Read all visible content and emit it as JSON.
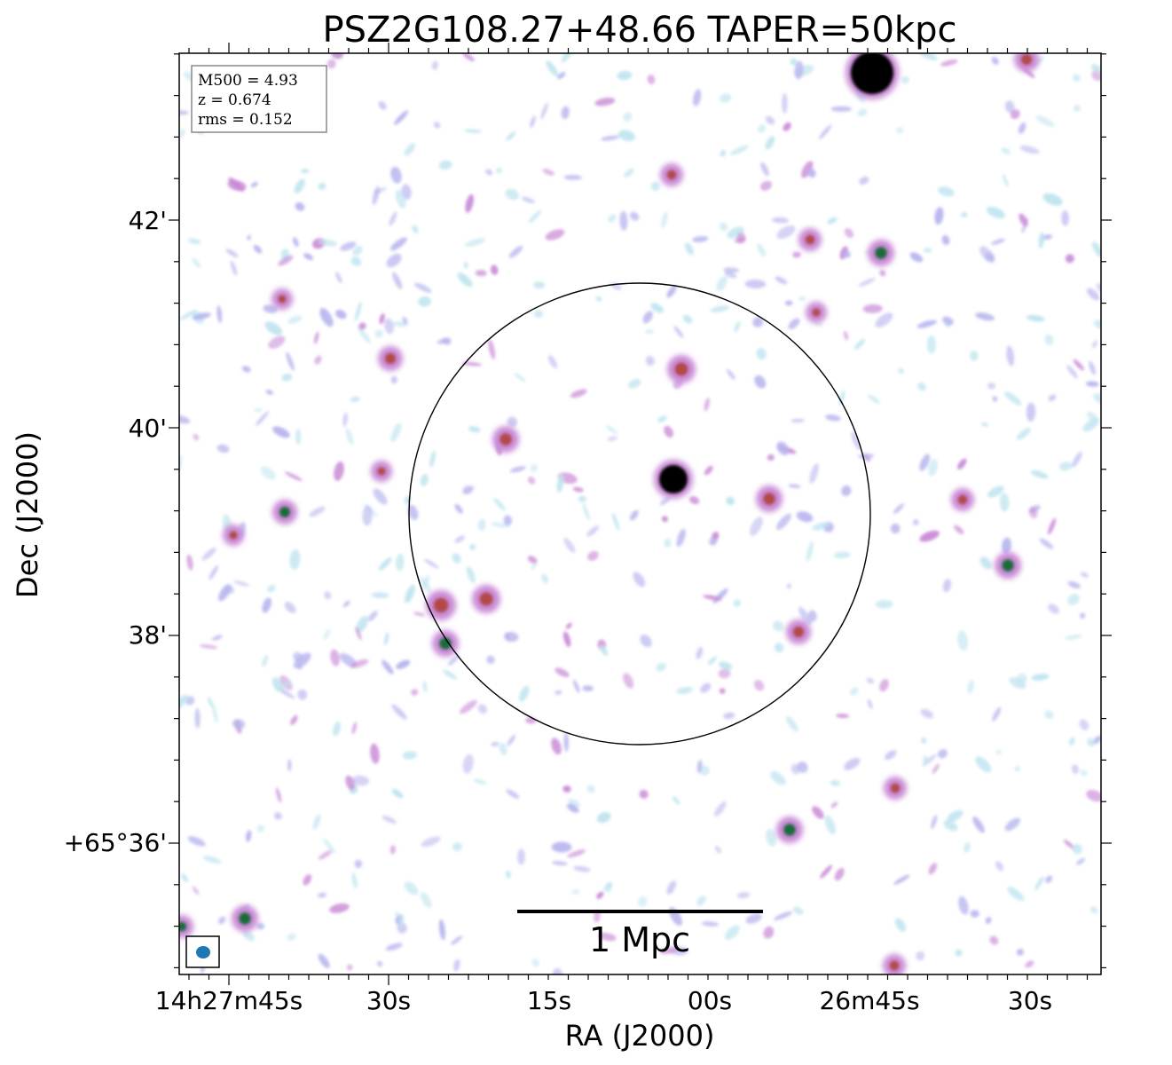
{
  "title": "PSZ2G108.27+48.66 TAPER=50kpc",
  "info_box": {
    "lines": [
      "M500 = 4.93",
      "z = 0.674",
      "rms = 0.152"
    ]
  },
  "axes": {
    "xlabel": "RA (J2000)",
    "ylabel": "Dec (J2000)",
    "xticks": [
      "14h27m45s",
      "30s",
      "15s",
      "00s",
      "26m45s",
      "30s"
    ],
    "yticks": [
      "42'",
      "40'",
      "38'",
      "+65°36'"
    ]
  },
  "scalebar": {
    "label": "1 Mpc"
  },
  "colors": {
    "noise_light": "#bfe4ef",
    "noise_mid": "#b7b5ee",
    "noise_pink": "#c98ad6",
    "source_red": "#b24a4a",
    "source_green": "#1f6b3a",
    "source_core": "#000000",
    "beam": "#1f77b4"
  }
}
